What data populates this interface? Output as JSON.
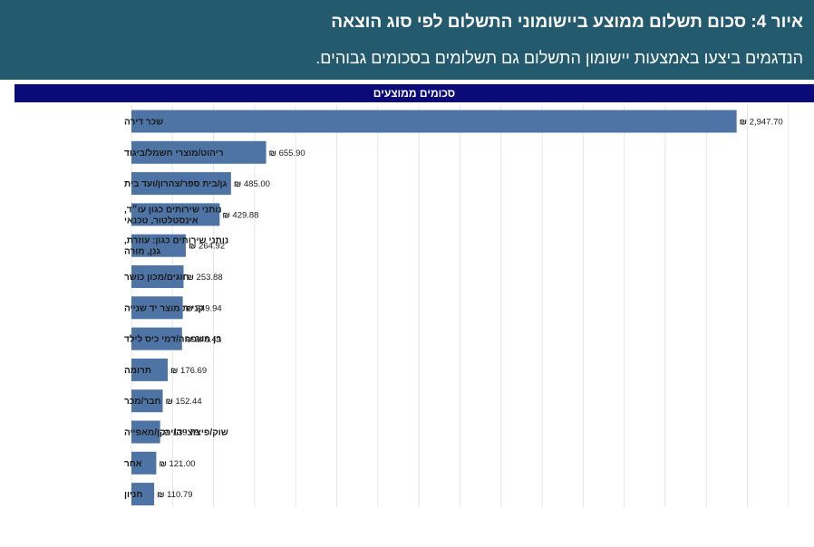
{
  "header": {
    "title": "איור 4: סכום תשלום ממוצע ביישומוני התשלום לפי סוג הוצאה",
    "subtitle": "הנדגמים ביצעו באמצעות יישומון התשלום גם תשלומים בסכומים גבוהים."
  },
  "colors": {
    "header_bg": "#235a6d",
    "band_bg": "#0a0a78",
    "bar": "#4e74a5",
    "grid": "#e6e6e6",
    "text": "#1a1a1a"
  },
  "chart_data": {
    "type": "bar",
    "orientation": "horizontal",
    "title": "סכומים ממוצעים",
    "currency_symbol": "₪",
    "categories": [
      "שכר דירה",
      "ריהוט/מוצרי חשמל/ביגוד",
      "גן/בית ספר/צהרון/ועד בית",
      [
        "נותני שירותים כגון עו״ד,",
        "אינסטלטור, טכנאי"
      ],
      [
        "נותני שירותים כגון: עוזרת,",
        "גנן, מורה"
      ],
      "חוגים/מכון כושר",
      "קניית מוצר יד שנייה",
      "בן משפחה/דמי כיס לילד",
      "תרומה",
      "חבר/מכר",
      "שוק/פיצוצייה/ירקן/מאפייה",
      "אחר",
      "חניון"
    ],
    "values": [
      2947.7,
      655.9,
      485.0,
      429.88,
      264.92,
      253.88,
      249.94,
      246.49,
      176.69,
      152.44,
      139.79,
      121.0,
      110.79
    ],
    "value_labels": [
      "2,947.70",
      "655.90",
      "485.00",
      "429.88",
      "264.92",
      "253.88",
      "249.94",
      "246.49",
      "176.69",
      "152.44",
      "139.79",
      "121.00",
      "110.79"
    ],
    "xlim": [
      0,
      3200
    ],
    "grid_step": 200,
    "grid": true,
    "legend": "none"
  }
}
